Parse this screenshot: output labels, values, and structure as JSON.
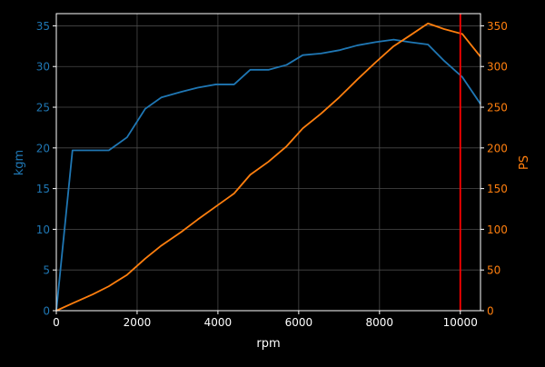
{
  "chart_data": {
    "type": "line",
    "title": "",
    "xlabel": "rpm",
    "ylabel_left": "kgm",
    "ylabel_right": "PS",
    "xlim": [
      0,
      10500
    ],
    "ylim_left": [
      0,
      36.5
    ],
    "ylim_right": [
      0,
      365
    ],
    "grid": true,
    "background": "#000000",
    "xticks": [
      0,
      2000,
      4000,
      6000,
      8000,
      10000
    ],
    "yticks_left": [
      0,
      5,
      10,
      15,
      20,
      25,
      30,
      35
    ],
    "yticks_right": [
      0,
      50,
      100,
      150,
      200,
      250,
      300,
      350
    ],
    "vline": {
      "x": 10000,
      "color": "#ff0000"
    },
    "series": [
      {
        "axis": "left",
        "color": "#1f77b4",
        "points": [
          [
            0,
            0
          ],
          [
            400,
            19.7
          ],
          [
            1300,
            19.7
          ],
          [
            1750,
            21.3
          ],
          [
            2200,
            24.8
          ],
          [
            2600,
            26.2
          ],
          [
            3100,
            26.9
          ],
          [
            3500,
            27.4
          ],
          [
            3950,
            27.8
          ],
          [
            4400,
            27.8
          ],
          [
            4800,
            29.6
          ],
          [
            5250,
            29.6
          ],
          [
            5700,
            30.2
          ],
          [
            6100,
            31.4
          ],
          [
            6550,
            31.6
          ],
          [
            7000,
            32.0
          ],
          [
            7450,
            32.6
          ],
          [
            7900,
            33.0
          ],
          [
            8350,
            33.3
          ],
          [
            8750,
            33.0
          ],
          [
            9200,
            32.7
          ],
          [
            9600,
            30.7
          ],
          [
            10050,
            28.7
          ],
          [
            10500,
            25.4
          ]
        ]
      },
      {
        "axis": "right",
        "color": "#ff7f0e",
        "points": [
          [
            0,
            0
          ],
          [
            400,
            9
          ],
          [
            900,
            20
          ],
          [
            1300,
            30
          ],
          [
            1750,
            44
          ],
          [
            2200,
            64
          ],
          [
            2600,
            80
          ],
          [
            3100,
            97
          ],
          [
            3500,
            112
          ],
          [
            3950,
            128
          ],
          [
            4400,
            144
          ],
          [
            4800,
            167
          ],
          [
            5250,
            183
          ],
          [
            5700,
            202
          ],
          [
            6100,
            224
          ],
          [
            6550,
            242
          ],
          [
            7000,
            262
          ],
          [
            7450,
            284
          ],
          [
            7900,
            305
          ],
          [
            8350,
            325
          ],
          [
            8750,
            338
          ],
          [
            9200,
            353
          ],
          [
            9600,
            346
          ],
          [
            10050,
            340
          ],
          [
            10500,
            312
          ]
        ]
      }
    ]
  },
  "colors": {
    "axis": "#ffffff",
    "grid": "#4a4a4a",
    "left_axis": "#1f77b4",
    "right_axis": "#ff7f0e"
  }
}
